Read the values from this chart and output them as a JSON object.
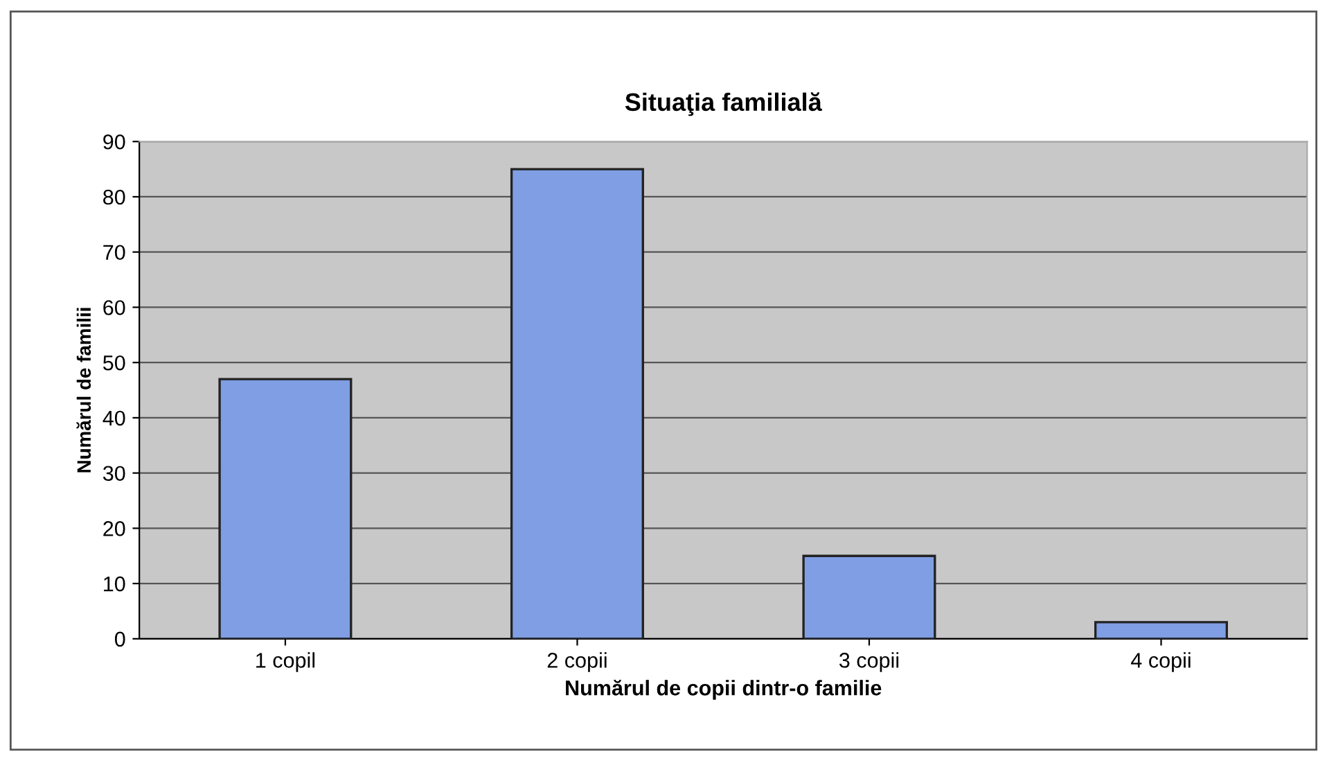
{
  "chart_data": {
    "type": "bar",
    "title": "Situaţia familială",
    "xlabel": "Numărul de copii dintr-o familie",
    "ylabel": "Numărul de familii",
    "categories": [
      "1 copil",
      "2 copii",
      "3 copii",
      "4 copii"
    ],
    "values": [
      47,
      85,
      15,
      3
    ],
    "color": "#7f9ee3",
    "ylim": [
      0,
      90
    ],
    "yticks": [
      0,
      10,
      20,
      30,
      40,
      50,
      60,
      70,
      80,
      90
    ],
    "grid": "y",
    "legend": false
  }
}
